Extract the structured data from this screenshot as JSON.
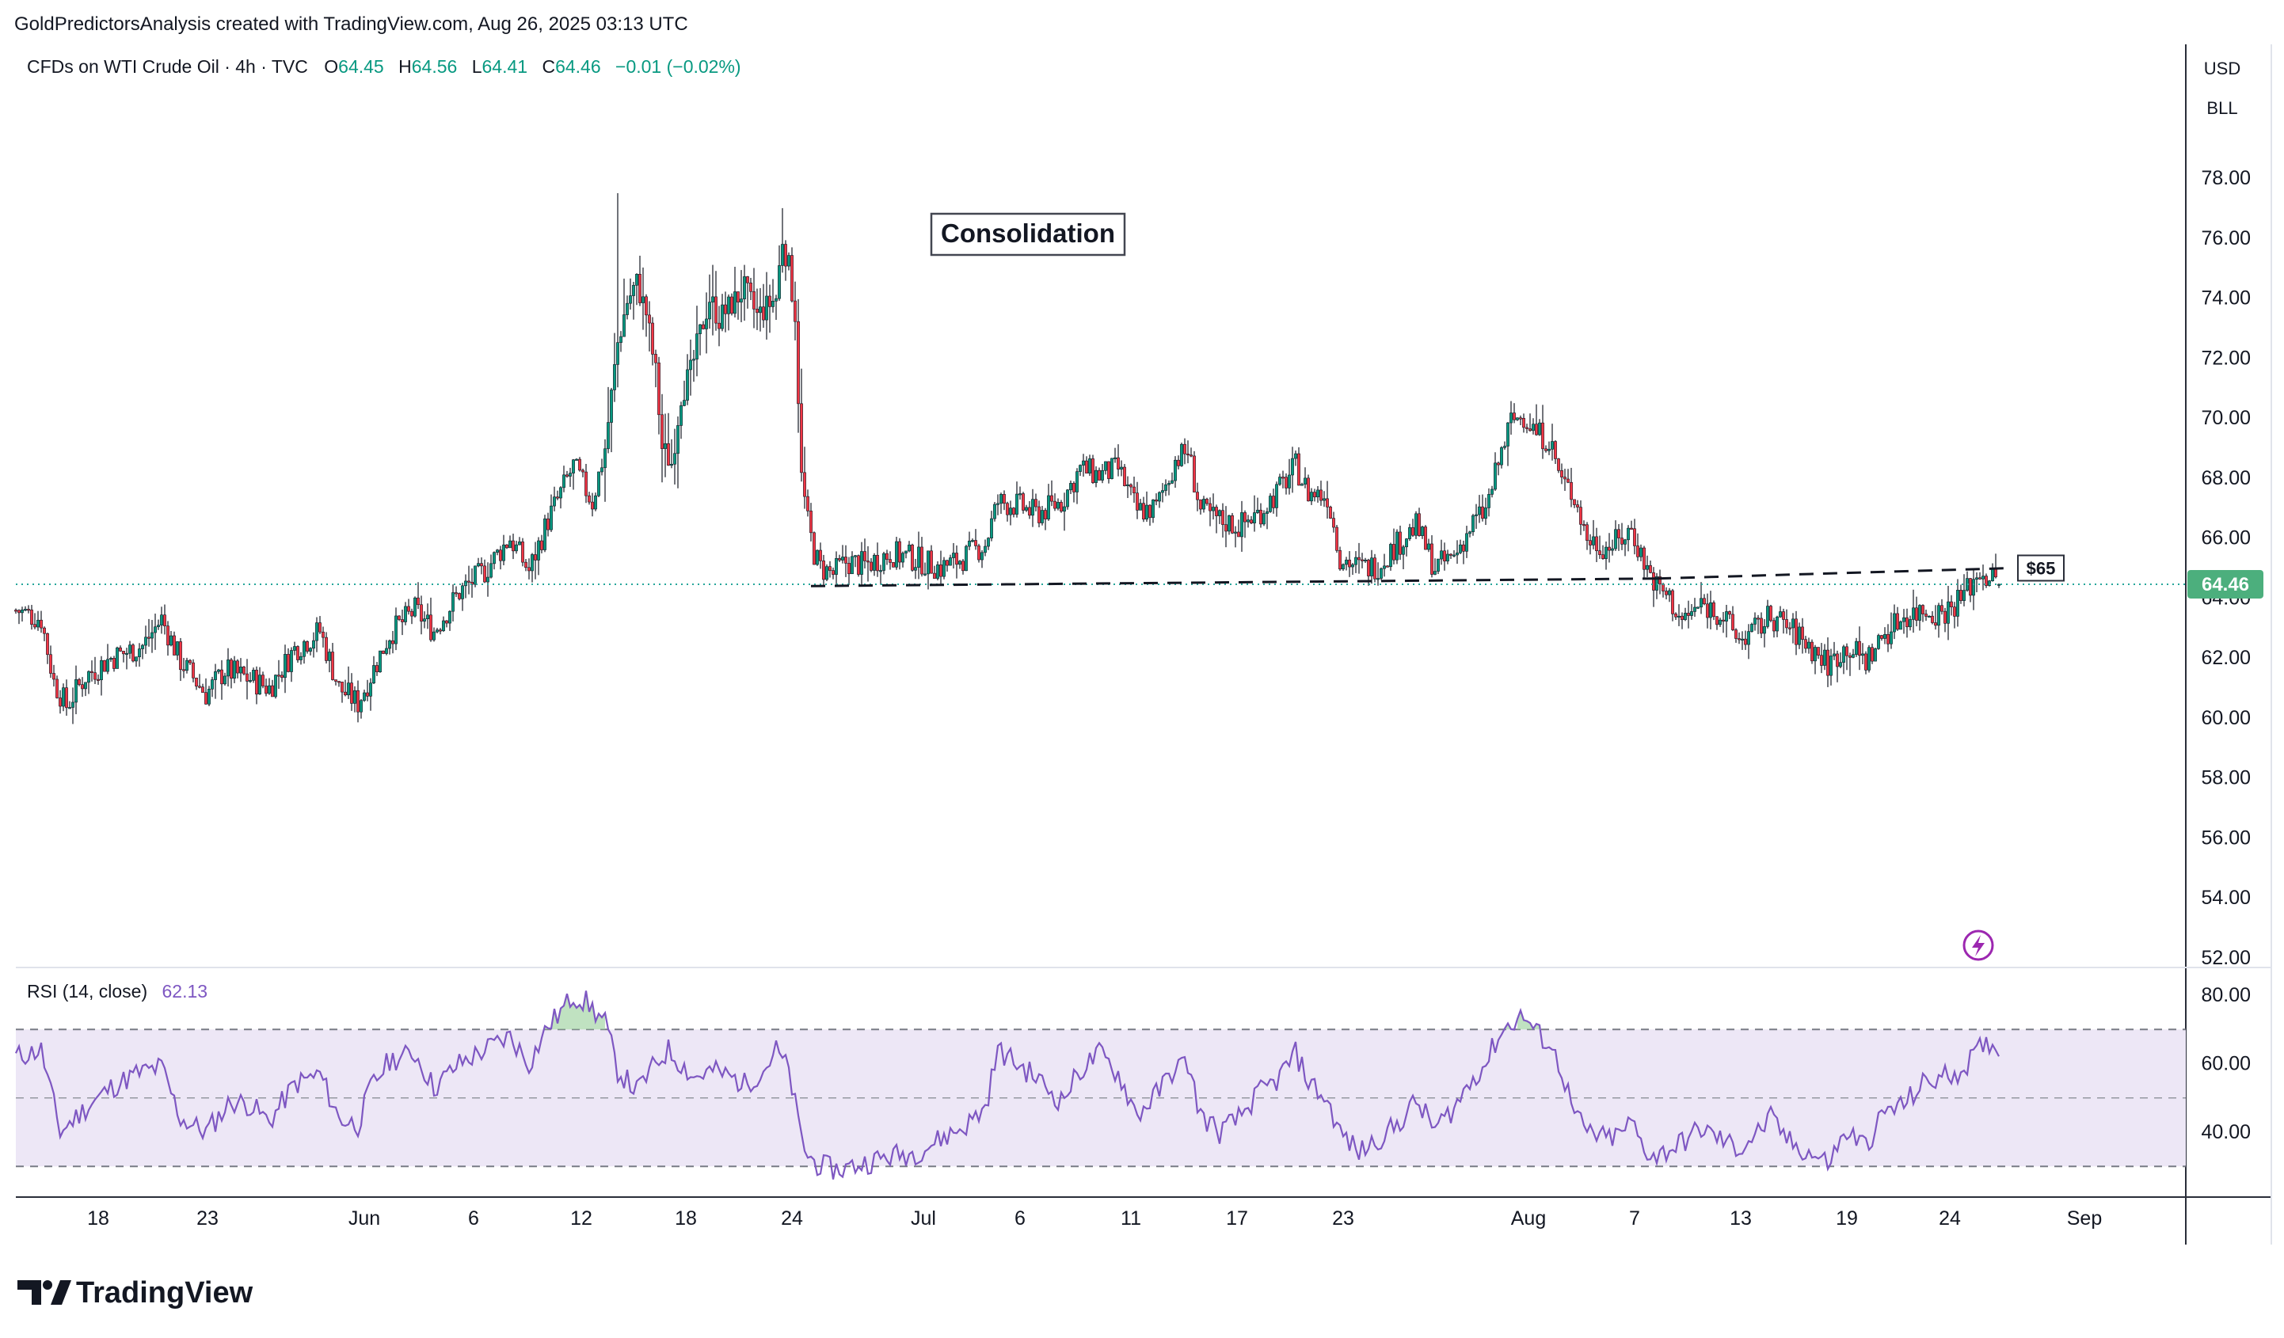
{
  "header": {
    "attribution": "GoldPredictorsAnalysis created with TradingView.com, Aug 26, 2025 03:13 UTC"
  },
  "legend": {
    "symbol": "CFDs on WTI Crude Oil · 4h · TVC",
    "open_label": "O",
    "open": "64.45",
    "high_label": "H",
    "high": "64.56",
    "low_label": "L",
    "low": "64.41",
    "close_label": "C",
    "close": "64.46",
    "change": "−0.01 (−0.02%)"
  },
  "price_scale": {
    "currency": "USD",
    "unit": "BLL",
    "ticks": [
      "78.00",
      "76.00",
      "74.00",
      "72.00",
      "70.00",
      "68.00",
      "66.00",
      "64.00",
      "62.00",
      "60.00",
      "58.00",
      "56.00",
      "54.00",
      "52.00"
    ],
    "last_price": "64.46"
  },
  "annotations": {
    "consolidation": "Consolidation",
    "level_label": "$65"
  },
  "rsi": {
    "legend": "RSI (14, close)",
    "value": "62.13",
    "ticks": [
      "80.00",
      "60.00",
      "40.00"
    ]
  },
  "time_axis": {
    "labels": [
      "18",
      "23",
      "Jun",
      "6",
      "12",
      "18",
      "24",
      "Jul",
      "6",
      "11",
      "17",
      "23",
      "Aug",
      "7",
      "13",
      "19",
      "24",
      "Sep"
    ]
  },
  "footer": {
    "brand": "TradingView"
  },
  "colors": {
    "up": "#089981",
    "down": "#f23645",
    "rsi_line": "#7e57c2",
    "rsi_band": "#ede7f6",
    "last_price_bg": "#4caf7d",
    "dotted_price": "#26a69a"
  },
  "chart_data": [
    {
      "type": "candlestick",
      "title": "CFDs on WTI Crude Oil · 4h · TVC",
      "ylim": [
        52,
        79
      ],
      "y_ticks": [
        78,
        76,
        74,
        72,
        70,
        68,
        66,
        64,
        62,
        60,
        58,
        56,
        54,
        52
      ],
      "x_labels": [
        "18",
        "23",
        "Jun",
        "6",
        "12",
        "18",
        "24",
        "Jul",
        "6",
        "11",
        "17",
        "23",
        "Aug",
        "7",
        "13",
        "19",
        "24",
        "Sep"
      ],
      "last_price": 64.46,
      "ohlc_last": {
        "open": 64.45,
        "high": 64.56,
        "low": 64.41,
        "close": 64.46
      },
      "support_resistance_level": 65,
      "trajectory_close": [
        [
          0,
          63.6
        ],
        [
          8,
          63.3
        ],
        [
          12,
          61.2
        ],
        [
          16,
          60.4
        ],
        [
          22,
          61.4
        ],
        [
          30,
          62.0
        ],
        [
          40,
          62.4
        ],
        [
          46,
          63.3
        ],
        [
          52,
          61.9
        ],
        [
          60,
          60.8
        ],
        [
          66,
          61.6
        ],
        [
          74,
          61.3
        ],
        [
          80,
          61.0
        ],
        [
          88,
          62.3
        ],
        [
          96,
          62.9
        ],
        [
          102,
          61.0
        ],
        [
          108,
          60.5
        ],
        [
          112,
          61.4
        ],
        [
          118,
          62.8
        ],
        [
          126,
          63.6
        ],
        [
          132,
          62.9
        ],
        [
          140,
          64.2
        ],
        [
          148,
          64.9
        ],
        [
          156,
          66.0
        ],
        [
          162,
          64.9
        ],
        [
          168,
          66.6
        ],
        [
          176,
          68.4
        ],
        [
          182,
          67.2
        ],
        [
          186,
          69.0
        ],
        [
          190,
          72.5
        ],
        [
          193,
          73.9
        ],
        [
          196,
          74.5
        ],
        [
          199,
          73.5
        ],
        [
          202,
          71.5
        ],
        [
          204,
          69.0
        ],
        [
          207,
          68.5
        ],
        [
          210,
          70.8
        ],
        [
          213,
          71.5
        ],
        [
          216,
          72.8
        ],
        [
          219,
          74.0
        ],
        [
          222,
          73.3
        ],
        [
          226,
          73.8
        ],
        [
          230,
          74.3
        ],
        [
          234,
          73.4
        ],
        [
          238,
          73.8
        ],
        [
          240,
          74.0
        ],
        [
          242,
          76.0
        ],
        [
          244,
          75.0
        ],
        [
          246,
          73.5
        ],
        [
          248,
          68.0
        ],
        [
          250,
          66.5
        ],
        [
          252,
          65.5
        ],
        [
          254,
          65.0
        ],
        [
          258,
          64.8
        ],
        [
          262,
          65.2
        ],
        [
          268,
          65.1
        ],
        [
          276,
          65.5
        ],
        [
          284,
          65.3
        ],
        [
          292,
          65.0
        ],
        [
          300,
          65.4
        ],
        [
          306,
          65.8
        ],
        [
          310,
          67.2
        ],
        [
          316,
          67.1
        ],
        [
          322,
          66.8
        ],
        [
          330,
          67.2
        ],
        [
          336,
          68.3
        ],
        [
          342,
          68.1
        ],
        [
          348,
          68.3
        ],
        [
          354,
          66.9
        ],
        [
          360,
          67.0
        ],
        [
          366,
          68.6
        ],
        [
          370,
          68.9
        ],
        [
          374,
          66.9
        ],
        [
          380,
          66.6
        ],
        [
          386,
          66.4
        ],
        [
          392,
          66.8
        ],
        [
          398,
          67.5
        ],
        [
          404,
          68.4
        ],
        [
          408,
          67.5
        ],
        [
          414,
          67.4
        ],
        [
          418,
          65.4
        ],
        [
          424,
          65.0
        ],
        [
          430,
          65.1
        ],
        [
          436,
          65.8
        ],
        [
          442,
          66.4
        ],
        [
          448,
          65.0
        ],
        [
          454,
          65.4
        ],
        [
          460,
          66.5
        ],
        [
          464,
          66.9
        ],
        [
          468,
          68.5
        ],
        [
          472,
          69.9
        ],
        [
          476,
          70.1
        ],
        [
          480,
          69.5
        ],
        [
          484,
          69.3
        ],
        [
          488,
          67.9
        ],
        [
          492,
          67.4
        ],
        [
          496,
          66.0
        ],
        [
          502,
          65.7
        ],
        [
          506,
          65.9
        ],
        [
          510,
          66.3
        ],
        [
          514,
          65.2
        ],
        [
          518,
          64.4
        ],
        [
          522,
          64.0
        ],
        [
          526,
          63.2
        ],
        [
          532,
          63.8
        ],
        [
          538,
          63.5
        ],
        [
          544,
          62.6
        ],
        [
          550,
          63.0
        ],
        [
          554,
          63.4
        ],
        [
          560,
          63.0
        ],
        [
          566,
          62.4
        ],
        [
          572,
          61.8
        ],
        [
          578,
          62.4
        ],
        [
          584,
          61.9
        ],
        [
          590,
          62.8
        ],
        [
          596,
          63.4
        ],
        [
          602,
          63.6
        ],
        [
          608,
          63.5
        ],
        [
          614,
          64.0
        ],
        [
          620,
          64.9
        ],
        [
          624,
          64.6
        ],
        [
          626,
          64.46
        ]
      ]
    },
    {
      "type": "line",
      "title": "RSI (14, close)",
      "ylim": [
        25,
        85
      ],
      "y_ticks": [
        80,
        60,
        40
      ],
      "band": [
        30,
        70
      ],
      "midline": 50,
      "last_value": 62.13,
      "values": [
        [
          0,
          62
        ],
        [
          8,
          64
        ],
        [
          14,
          40
        ],
        [
          22,
          47
        ],
        [
          30,
          53
        ],
        [
          38,
          57
        ],
        [
          46,
          59
        ],
        [
          52,
          44
        ],
        [
          60,
          40
        ],
        [
          68,
          49
        ],
        [
          74,
          48
        ],
        [
          80,
          43
        ],
        [
          88,
          54
        ],
        [
          96,
          57
        ],
        [
          102,
          44
        ],
        [
          108,
          42
        ],
        [
          112,
          53
        ],
        [
          118,
          61
        ],
        [
          126,
          63
        ],
        [
          132,
          53
        ],
        [
          140,
          60
        ],
        [
          148,
          64
        ],
        [
          156,
          68
        ],
        [
          162,
          60
        ],
        [
          168,
          71
        ],
        [
          172,
          75
        ],
        [
          176,
          80
        ],
        [
          180,
          78
        ],
        [
          186,
          72
        ],
        [
          190,
          58
        ],
        [
          196,
          52
        ],
        [
          202,
          60
        ],
        [
          206,
          64
        ],
        [
          210,
          60
        ],
        [
          214,
          56
        ],
        [
          220,
          58
        ],
        [
          226,
          56
        ],
        [
          230,
          54
        ],
        [
          236,
          58
        ],
        [
          240,
          64
        ],
        [
          244,
          58
        ],
        [
          248,
          38
        ],
        [
          250,
          33
        ],
        [
          254,
          30
        ],
        [
          260,
          29
        ],
        [
          268,
          31
        ],
        [
          276,
          33
        ],
        [
          284,
          34
        ],
        [
          292,
          38
        ],
        [
          300,
          42
        ],
        [
          306,
          47
        ],
        [
          310,
          64
        ],
        [
          316,
          60
        ],
        [
          322,
          56
        ],
        [
          330,
          49
        ],
        [
          336,
          58
        ],
        [
          342,
          63
        ],
        [
          348,
          57
        ],
        [
          354,
          45
        ],
        [
          360,
          51
        ],
        [
          366,
          59
        ],
        [
          370,
          60
        ],
        [
          374,
          45
        ],
        [
          380,
          40
        ],
        [
          386,
          44
        ],
        [
          392,
          51
        ],
        [
          398,
          55
        ],
        [
          404,
          63
        ],
        [
          408,
          55
        ],
        [
          414,
          49
        ],
        [
          418,
          40
        ],
        [
          424,
          34
        ],
        [
          430,
          38
        ],
        [
          436,
          42
        ],
        [
          442,
          49
        ],
        [
          448,
          41
        ],
        [
          454,
          47
        ],
        [
          460,
          56
        ],
        [
          464,
          60
        ],
        [
          468,
          68
        ],
        [
          472,
          72
        ],
        [
          476,
          74
        ],
        [
          480,
          69
        ],
        [
          484,
          66
        ],
        [
          488,
          58
        ],
        [
          492,
          45
        ],
        [
          496,
          40
        ],
        [
          502,
          38
        ],
        [
          506,
          39
        ],
        [
          510,
          43
        ],
        [
          514,
          35
        ],
        [
          518,
          33
        ],
        [
          522,
          35
        ],
        [
          526,
          37
        ],
        [
          532,
          41
        ],
        [
          538,
          38
        ],
        [
          544,
          35
        ],
        [
          550,
          40
        ],
        [
          554,
          44
        ],
        [
          560,
          37
        ],
        [
          566,
          34
        ],
        [
          572,
          31
        ],
        [
          578,
          40
        ],
        [
          584,
          36
        ],
        [
          590,
          46
        ],
        [
          596,
          48
        ],
        [
          602,
          54
        ],
        [
          608,
          56
        ],
        [
          614,
          58
        ],
        [
          620,
          64
        ],
        [
          624,
          67
        ],
        [
          626,
          62
        ]
      ]
    }
  ]
}
